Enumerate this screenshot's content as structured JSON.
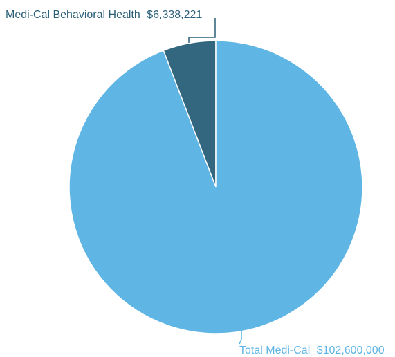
{
  "chart_data": {
    "type": "pie",
    "slices": [
      {
        "label": "Medi-Cal Behavioral Health",
        "value": 6338221,
        "value_text": "$6,338,221",
        "color": "#33667f"
      },
      {
        "label": "Total Medi-Cal",
        "value": 102600000,
        "value_text": "$102,600,000",
        "color": "#5fb5e4"
      }
    ],
    "label_colors": [
      "#2b5f78",
      "#5fb5e4"
    ],
    "slice_border_color": "#ffffff",
    "leader_line_color": "#2b5f78"
  }
}
